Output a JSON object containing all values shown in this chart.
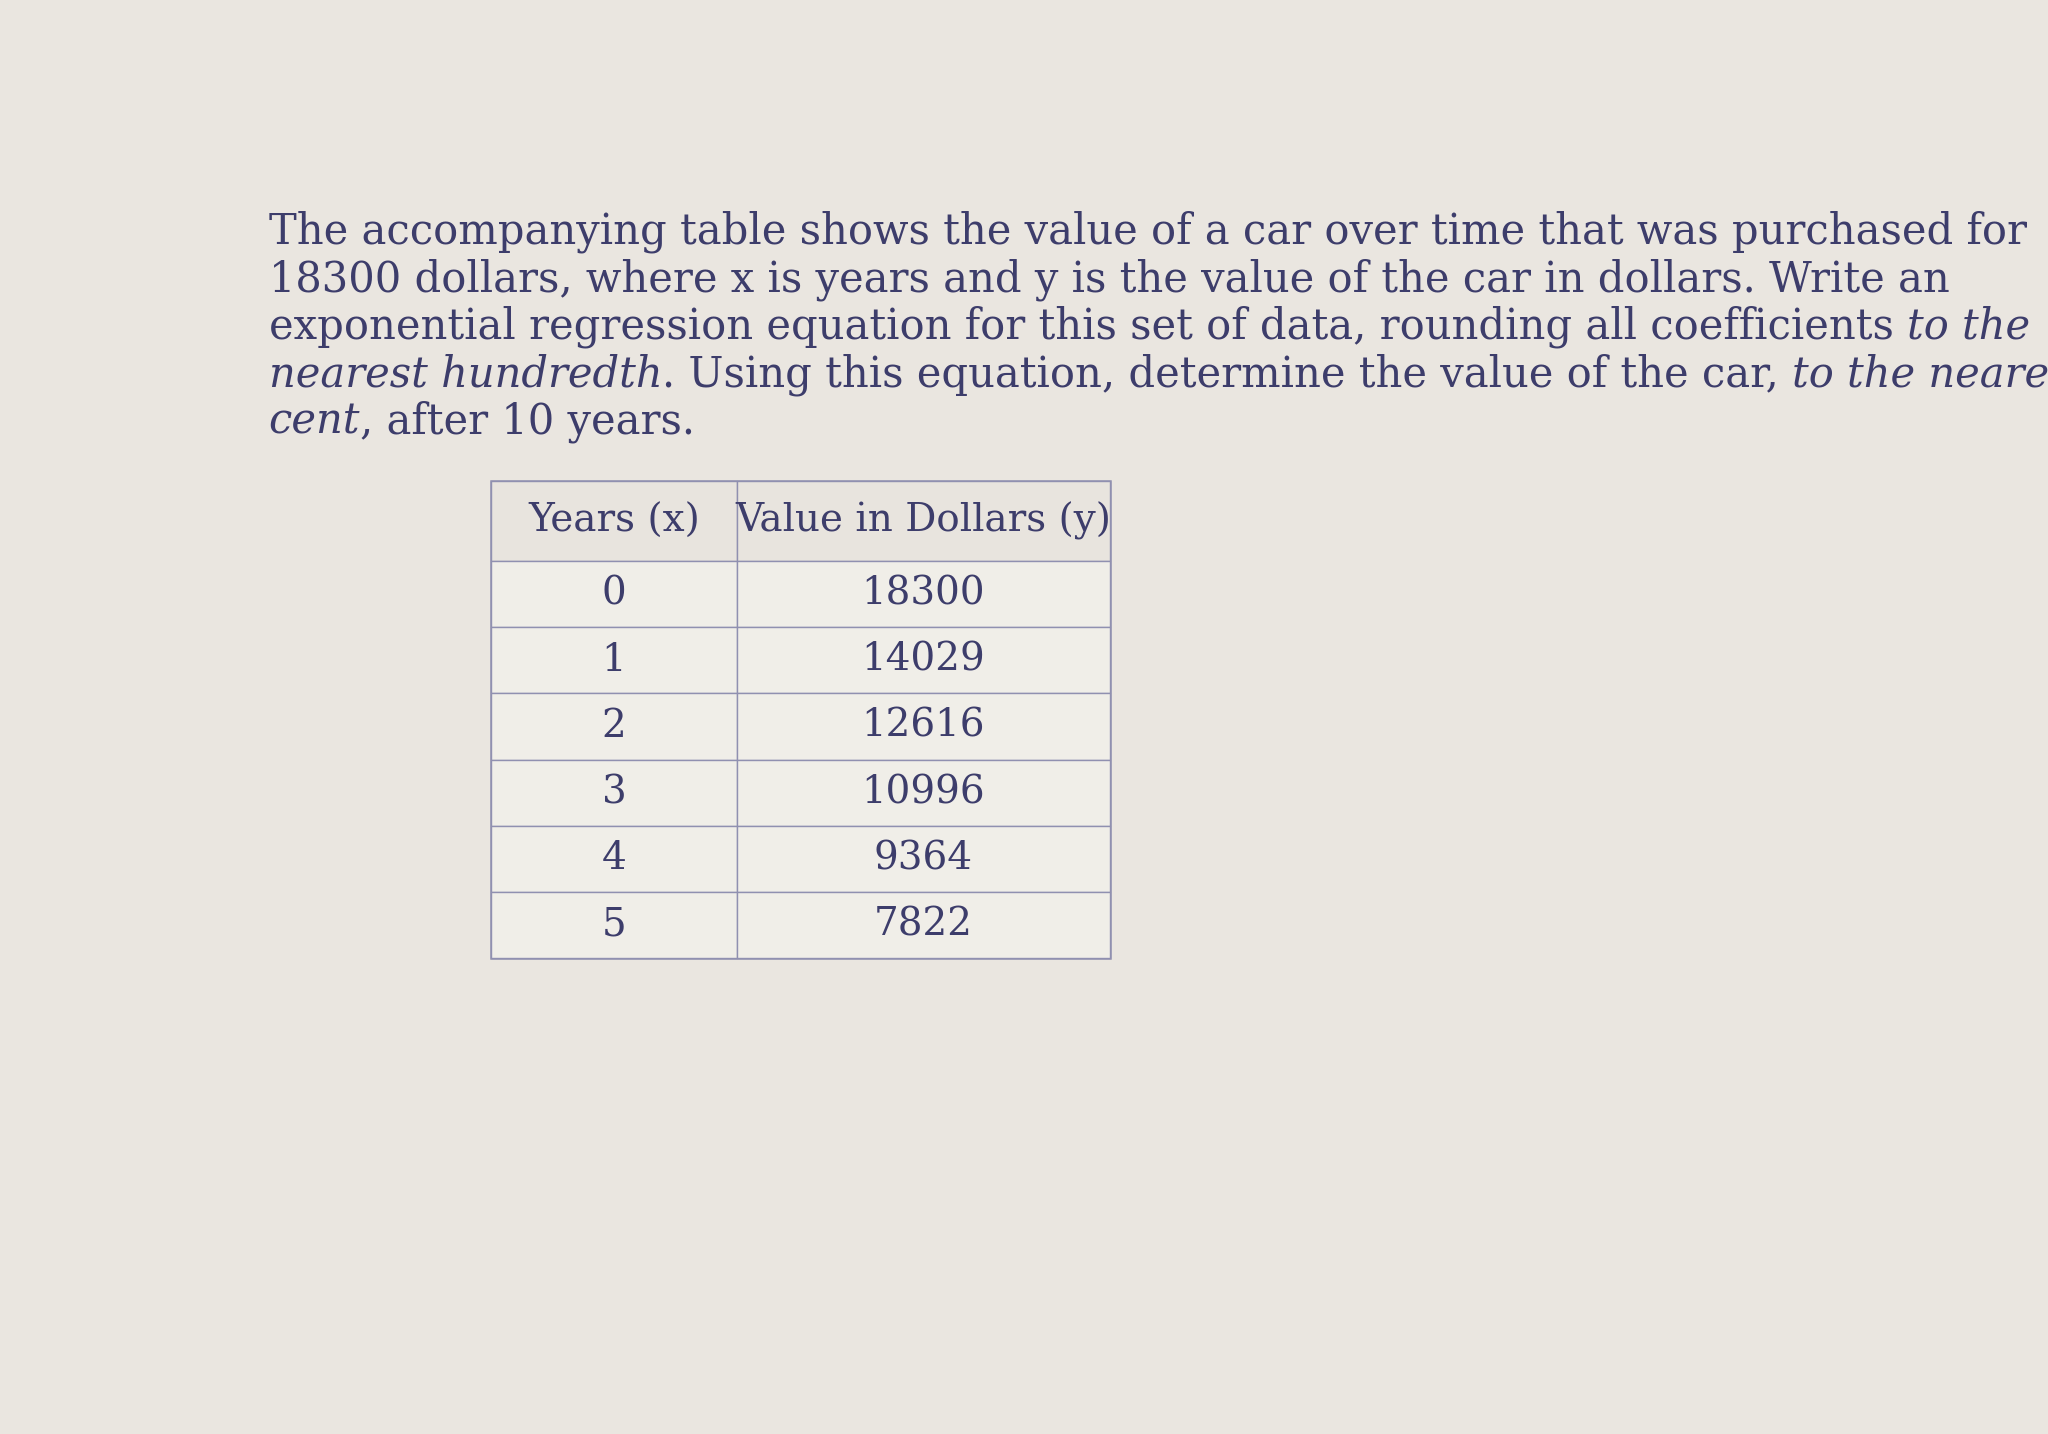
{
  "background_color": "#eae6e0",
  "text_color": "#3d3d6b",
  "table_border_color": "#9090b0",
  "table_fill_color": "#f0eee8",
  "header_fill_color": "#e8e4de",
  "font_size_paragraph": 30,
  "font_size_table": 28,
  "table_headers": [
    "Years (x)",
    "Value in Dollars (y)"
  ],
  "table_data": [
    [
      0,
      18300
    ],
    [
      1,
      14029
    ],
    [
      2,
      12616
    ],
    [
      3,
      10996
    ],
    [
      4,
      9364
    ],
    [
      5,
      7822
    ]
  ],
  "lines": [
    [
      {
        "text": "The accompanying table shows the value of a car over time that was purchased for",
        "italic": false
      }
    ],
    [
      {
        "text": "18300 dollars, where x is years and y is the value of the car in dollars. Write an",
        "italic": false
      }
    ],
    [
      {
        "text": "exponential regression equation for this set of data, rounding all coefficients ",
        "italic": false
      },
      {
        "text": "to the",
        "italic": true
      }
    ],
    [
      {
        "text": "nearest hundredth",
        "italic": true
      },
      {
        "text": ". Using this equation, determine the value of the car, ",
        "italic": false
      },
      {
        "text": "to the nearest",
        "italic": true
      }
    ],
    [
      {
        "text": "cent",
        "italic": true
      },
      {
        "text": ", after 10 years.",
        "italic": false
      }
    ]
  ]
}
